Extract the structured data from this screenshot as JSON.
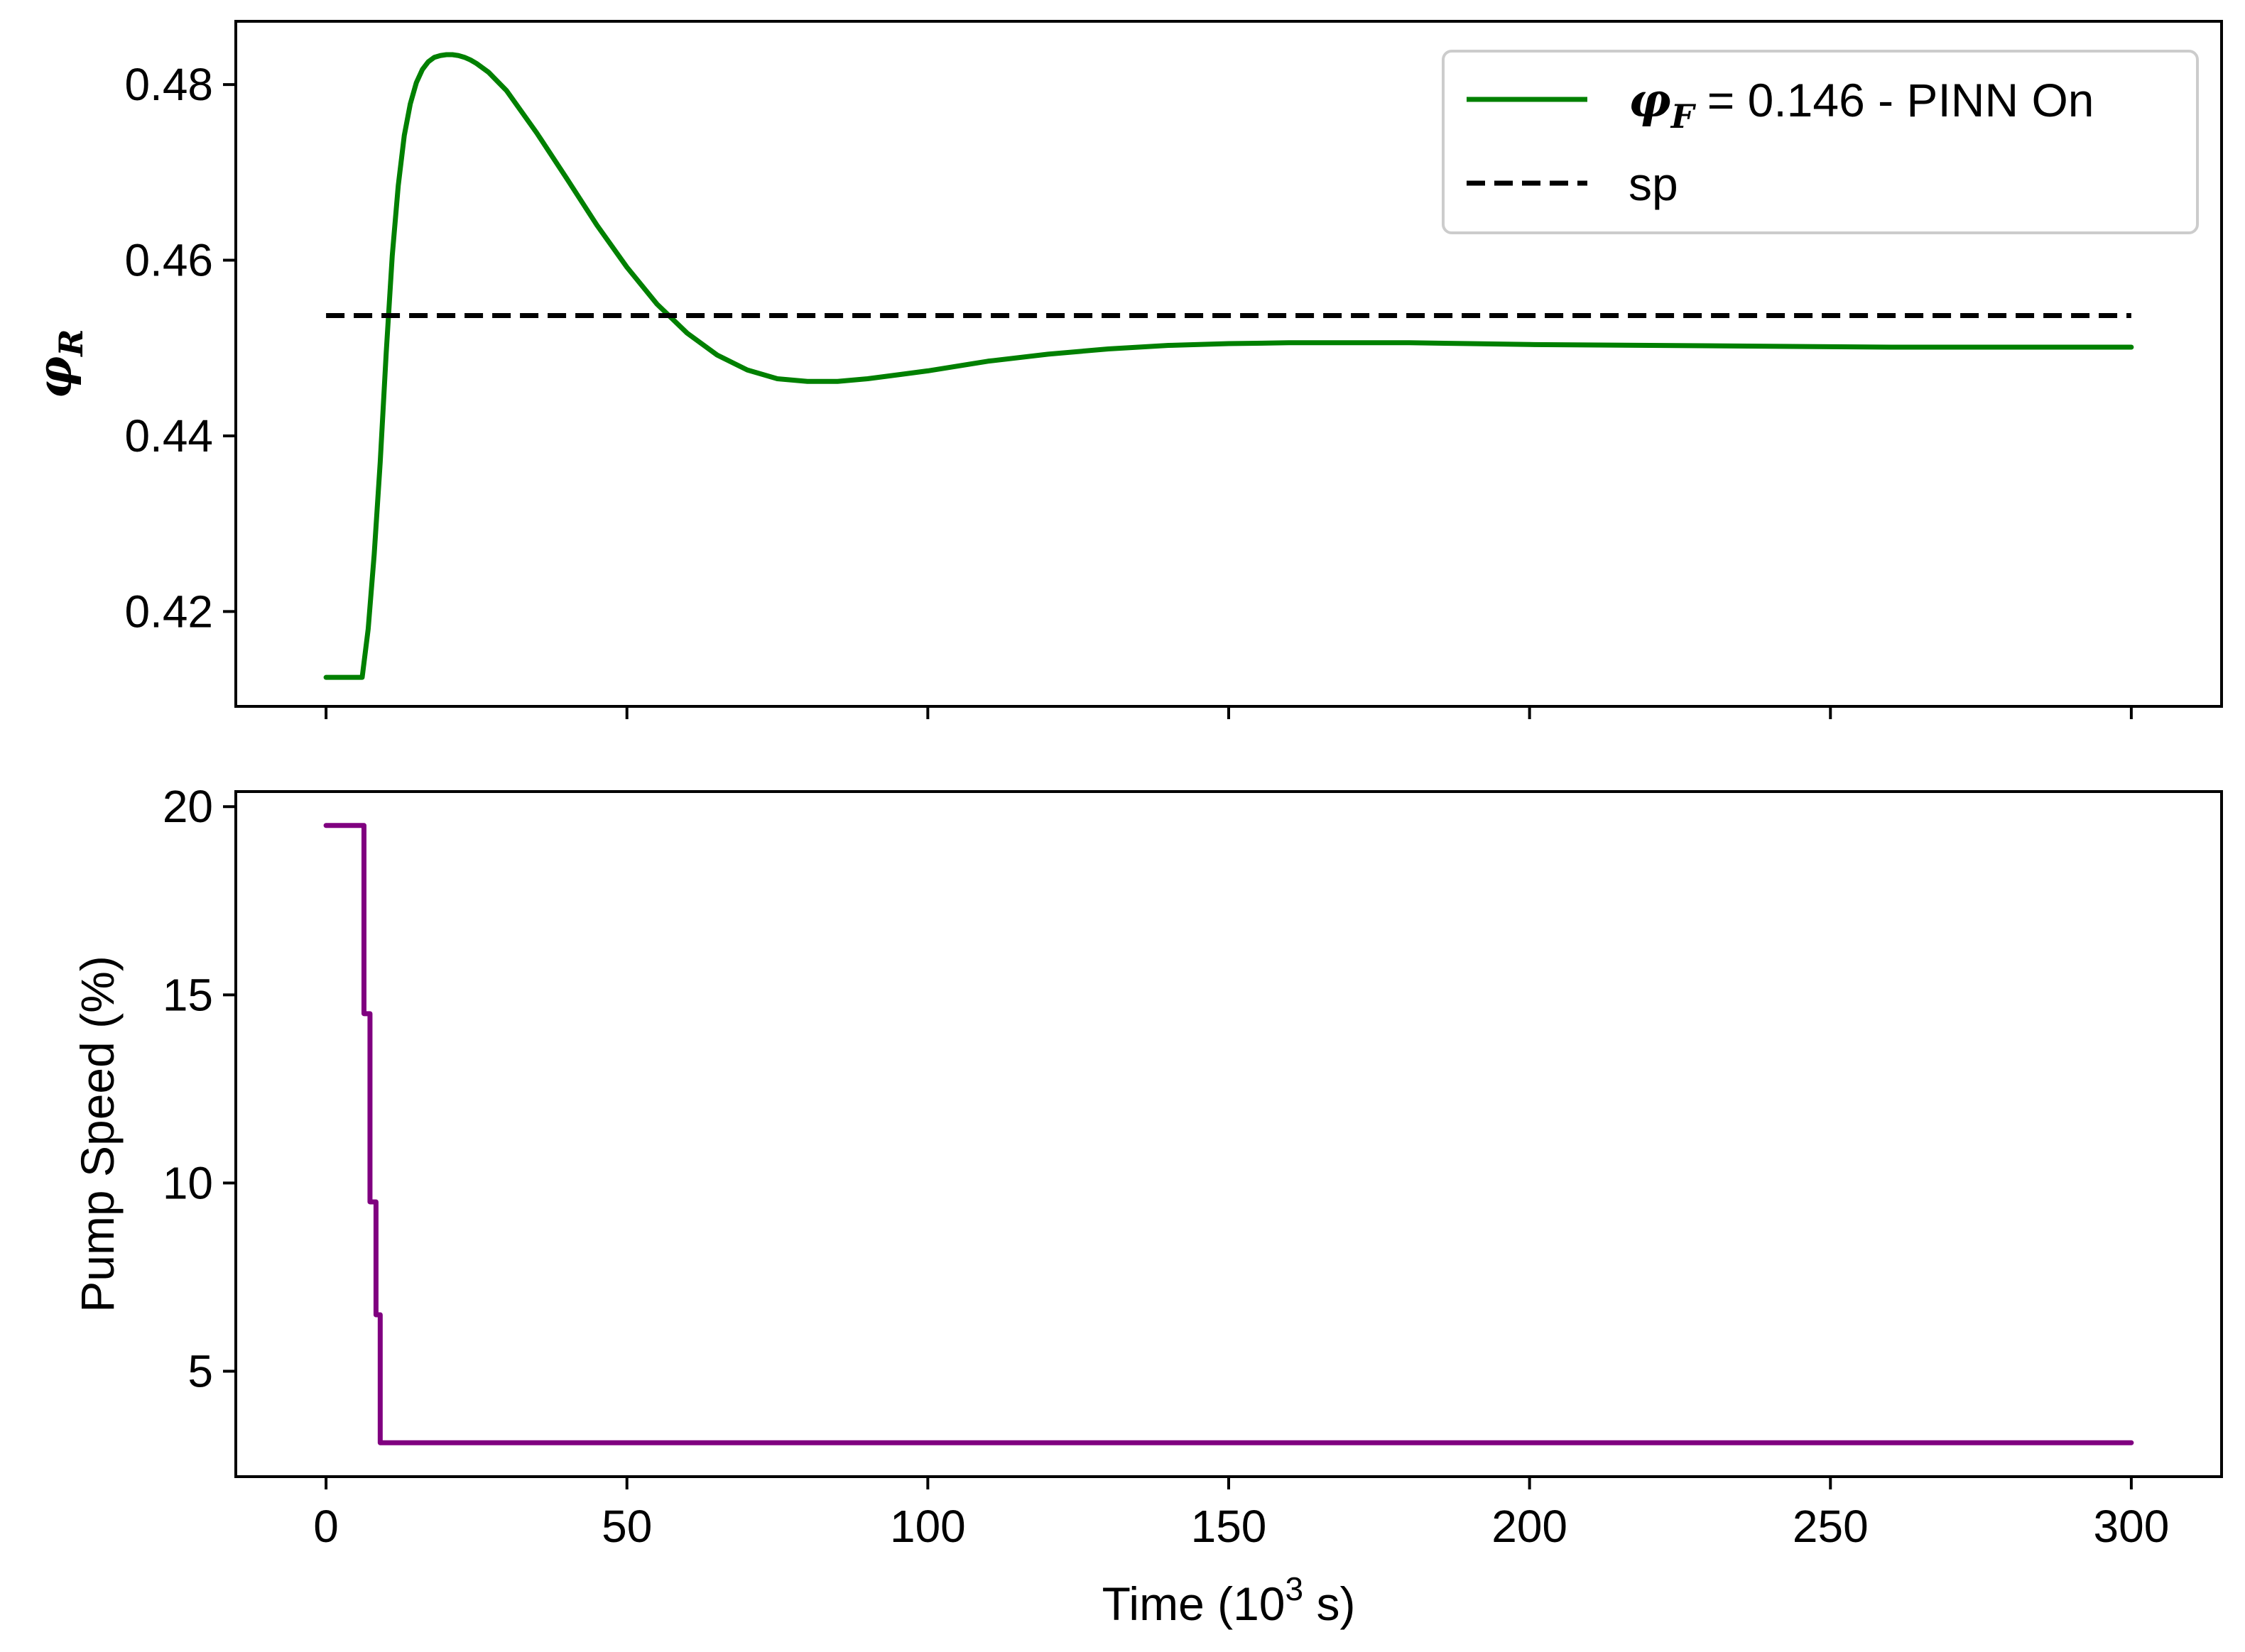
{
  "chart_data": [
    {
      "type": "line",
      "panel": "top",
      "ylabel": {
        "symbol": "φ",
        "subscript": "R"
      },
      "xlim": [
        -15,
        315
      ],
      "ylim": [
        0.4092,
        0.4872
      ],
      "yticks": [
        0.42,
        0.44,
        0.46,
        0.48
      ],
      "ytick_labels": [
        "0.42",
        "0.44",
        "0.46",
        "0.48"
      ],
      "xticks": [
        0,
        50,
        100,
        150,
        200,
        250,
        300
      ],
      "show_xtick_labels": false,
      "legend": {
        "placement": "top-right",
        "entries": [
          {
            "symbol": "φ",
            "subscript": "F",
            "text": " = 0.146 - PINN On",
            "color": "#008000",
            "style": "solid"
          },
          {
            "text": "sp",
            "color": "#000000",
            "style": "dashed"
          }
        ]
      },
      "series": [
        {
          "name": "φF = 0.146 - PINN On",
          "color": "#008000",
          "x": [
            0,
            6,
            7,
            8,
            9,
            10,
            11,
            12,
            13,
            14,
            15,
            16,
            17,
            18,
            19,
            20,
            21,
            22,
            23,
            24,
            25,
            27,
            30,
            35,
            40,
            45,
            50,
            55,
            60,
            65,
            70,
            75,
            80,
            85,
            90,
            100,
            110,
            120,
            130,
            140,
            150,
            160,
            170,
            180,
            190,
            200,
            220,
            240,
            260,
            280,
            300
          ],
          "y": [
            0.4125,
            0.4125,
            0.418,
            0.4265,
            0.437,
            0.4495,
            0.4605,
            0.4685,
            0.4742,
            0.4778,
            0.4802,
            0.4817,
            0.4826,
            0.4831,
            0.4833,
            0.4834,
            0.4834,
            0.4833,
            0.4831,
            0.4828,
            0.4824,
            0.4814,
            0.4793,
            0.4745,
            0.4693,
            0.464,
            0.4592,
            0.455,
            0.4517,
            0.4492,
            0.4475,
            0.4465,
            0.4462,
            0.4462,
            0.4465,
            0.4474,
            0.4485,
            0.4493,
            0.4499,
            0.4503,
            0.4505,
            0.4506,
            0.4506,
            0.4506,
            0.4505,
            0.4504,
            0.4503,
            0.4502,
            0.4501,
            0.4501,
            0.4501
          ]
        },
        {
          "name": "sp",
          "color": "#000000",
          "dashed": true,
          "x": [
            0,
            300
          ],
          "y": [
            0.4537,
            0.4537
          ]
        }
      ]
    },
    {
      "type": "line",
      "panel": "bottom",
      "ylabel": "Pump Speed (%)",
      "xlabel": {
        "text": "Time (10",
        "sup": "3",
        "tail": " s)"
      },
      "xlim": [
        -15,
        315
      ],
      "ylim": [
        2.2,
        20.4
      ],
      "yticks": [
        5,
        10,
        15,
        20
      ],
      "ytick_labels": [
        "5",
        "10",
        "15",
        "20"
      ],
      "xticks": [
        0,
        50,
        100,
        150,
        200,
        250,
        300
      ],
      "xtick_labels": [
        "0",
        "50",
        "100",
        "150",
        "200",
        "250",
        "300"
      ],
      "series": [
        {
          "name": "Pump Speed",
          "color": "#800080",
          "step": "post",
          "x": [
            0,
            6.3,
            7.3,
            8.3,
            9.0,
            300
          ],
          "y": [
            19.5,
            14.5,
            9.5,
            6.5,
            3.1,
            3.1
          ]
        }
      ]
    }
  ]
}
